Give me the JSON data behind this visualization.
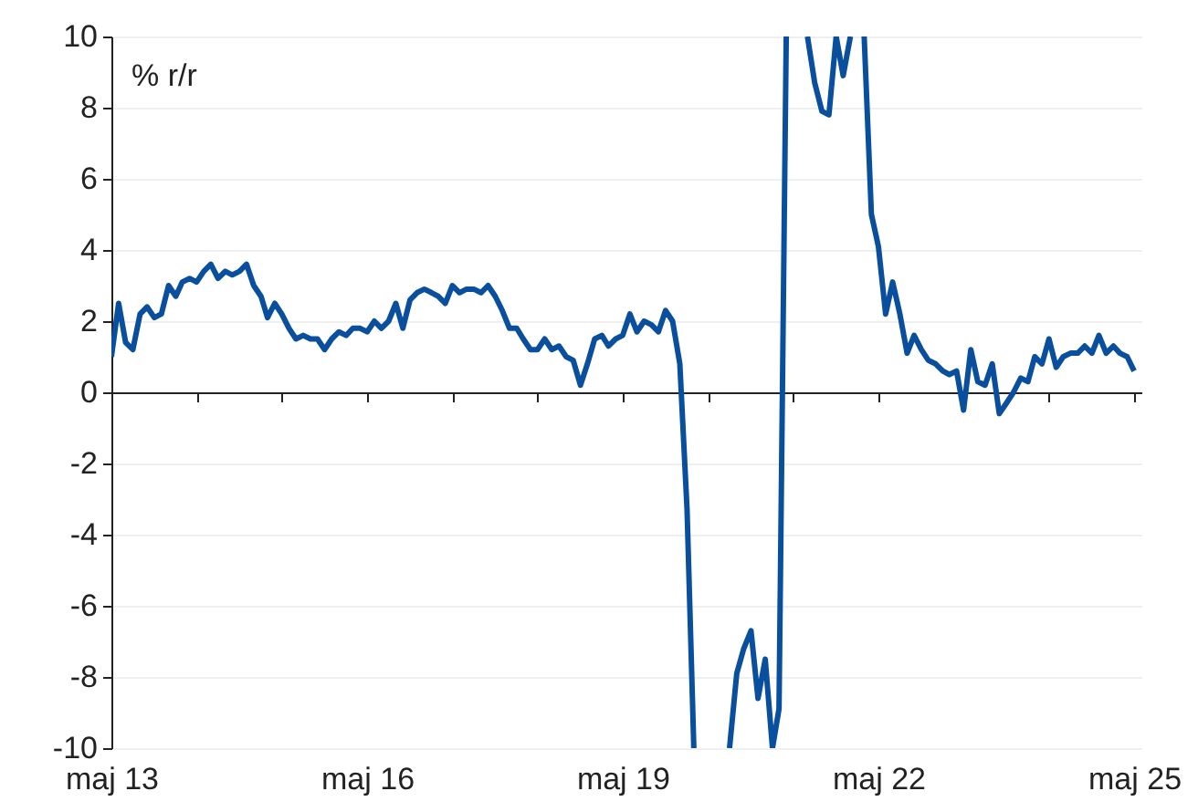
{
  "chart_data": {
    "type": "line",
    "ylabel": "% r/r",
    "x": [
      "2013-05",
      "2013-06",
      "2013-07",
      "2013-08",
      "2013-09",
      "2013-10",
      "2013-11",
      "2013-12",
      "2014-01",
      "2014-02",
      "2014-03",
      "2014-04",
      "2014-05",
      "2014-06",
      "2014-07",
      "2014-08",
      "2014-09",
      "2014-10",
      "2014-11",
      "2014-12",
      "2015-01",
      "2015-02",
      "2015-03",
      "2015-04",
      "2015-05",
      "2015-06",
      "2015-07",
      "2015-08",
      "2015-09",
      "2015-10",
      "2015-11",
      "2015-12",
      "2016-01",
      "2016-02",
      "2016-03",
      "2016-04",
      "2016-05",
      "2016-06",
      "2016-07",
      "2016-08",
      "2016-09",
      "2016-10",
      "2016-11",
      "2016-12",
      "2017-01",
      "2017-02",
      "2017-03",
      "2017-04",
      "2017-05",
      "2017-06",
      "2017-07",
      "2017-08",
      "2017-09",
      "2017-10",
      "2017-11",
      "2017-12",
      "2018-01",
      "2018-02",
      "2018-03",
      "2018-04",
      "2018-05",
      "2018-06",
      "2018-07",
      "2018-08",
      "2018-09",
      "2018-10",
      "2018-11",
      "2018-12",
      "2019-01",
      "2019-02",
      "2019-03",
      "2019-04",
      "2019-05",
      "2019-06",
      "2019-07",
      "2019-08",
      "2019-09",
      "2019-10",
      "2019-11",
      "2019-12",
      "2020-01",
      "2020-02",
      "2020-03",
      "2020-04",
      "2020-05",
      "2020-06",
      "2020-07",
      "2020-08",
      "2020-09",
      "2020-10",
      "2020-11",
      "2020-12",
      "2021-01",
      "2021-02",
      "2021-03",
      "2021-04",
      "2021-05",
      "2021-06",
      "2021-07",
      "2021-08",
      "2021-09",
      "2021-10",
      "2021-11",
      "2021-12",
      "2022-01",
      "2022-02",
      "2022-03",
      "2022-04",
      "2022-05",
      "2022-06",
      "2022-07",
      "2022-08",
      "2022-09",
      "2022-10",
      "2022-11",
      "2022-12",
      "2023-01",
      "2023-02",
      "2023-03",
      "2023-04",
      "2023-05",
      "2023-06",
      "2023-07",
      "2023-08",
      "2023-09",
      "2023-10",
      "2023-11",
      "2023-12",
      "2024-01",
      "2024-02",
      "2024-03",
      "2024-04",
      "2024-05",
      "2024-06",
      "2024-07",
      "2024-08",
      "2024-09",
      "2024-10",
      "2024-11",
      "2024-12",
      "2025-01",
      "2025-02",
      "2025-03",
      "2025-04",
      "2025-05"
    ],
    "series": [
      {
        "color": "#0a4f9e",
        "values": [
          1.0,
          2.5,
          1.4,
          1.2,
          2.2,
          2.4,
          2.1,
          2.2,
          3.0,
          2.7,
          3.1,
          3.2,
          3.1,
          3.4,
          3.6,
          3.2,
          3.4,
          3.3,
          3.4,
          3.6,
          3.0,
          2.7,
          2.1,
          2.5,
          2.2,
          1.8,
          1.5,
          1.6,
          1.5,
          1.5,
          1.2,
          1.5,
          1.7,
          1.6,
          1.8,
          1.8,
          1.7,
          2.0,
          1.8,
          2.0,
          2.5,
          1.8,
          2.6,
          2.8,
          2.9,
          2.8,
          2.7,
          2.5,
          3.0,
          2.8,
          2.9,
          2.9,
          2.8,
          3.0,
          2.7,
          2.3,
          1.8,
          1.8,
          1.5,
          1.2,
          1.2,
          1.5,
          1.2,
          1.3,
          1.0,
          0.9,
          0.2,
          0.8,
          1.5,
          1.6,
          1.3,
          1.5,
          1.6,
          2.2,
          1.7,
          2.0,
          1.9,
          1.7,
          2.3,
          2.0,
          0.8,
          -3.3,
          -10,
          null,
          null,
          null,
          null,
          -10,
          -7.9,
          -7.2,
          -6.7,
          -8.6,
          -7.5,
          -10,
          -8.9,
          10,
          null,
          null,
          10,
          8.7,
          7.9,
          7.8,
          10,
          8.9,
          10,
          null,
          10,
          5.0,
          4.1,
          2.2,
          3.1,
          2.2,
          1.1,
          1.6,
          1.2,
          0.9,
          0.8,
          0.6,
          0.5,
          0.6,
          -0.5,
          1.2,
          0.3,
          0.2,
          0.8,
          -0.6,
          -0.3,
          0.0,
          0.4,
          0.3,
          1.0,
          0.8,
          1.5,
          0.7,
          1.0,
          1.1,
          1.1,
          1.3,
          1.1,
          1.6,
          1.1,
          1.3,
          1.1,
          1.0,
          0.6
        ]
      }
    ],
    "xlim": [
      "2013-05",
      "2025-06"
    ],
    "xticks": [
      {
        "value": "2013-05",
        "label": "maj 13"
      },
      {
        "value": "2014-05",
        "label": null
      },
      {
        "value": "2015-05",
        "label": null
      },
      {
        "value": "2016-05",
        "label": "maj 16"
      },
      {
        "value": "2017-05",
        "label": null
      },
      {
        "value": "2018-05",
        "label": null
      },
      {
        "value": "2019-05",
        "label": "maj 19"
      },
      {
        "value": "2020-05",
        "label": null
      },
      {
        "value": "2021-05",
        "label": null
      },
      {
        "value": "2022-05",
        "label": "maj 22"
      },
      {
        "value": "2023-05",
        "label": null
      },
      {
        "value": "2024-05",
        "label": null
      },
      {
        "value": "2025-05",
        "label": "maj 25"
      }
    ],
    "ylim": [
      -10,
      10
    ],
    "yticks": [
      -10,
      -8,
      -6,
      -4,
      -2,
      0,
      2,
      4,
      6,
      8,
      10
    ],
    "grid": "y",
    "legend": false
  }
}
